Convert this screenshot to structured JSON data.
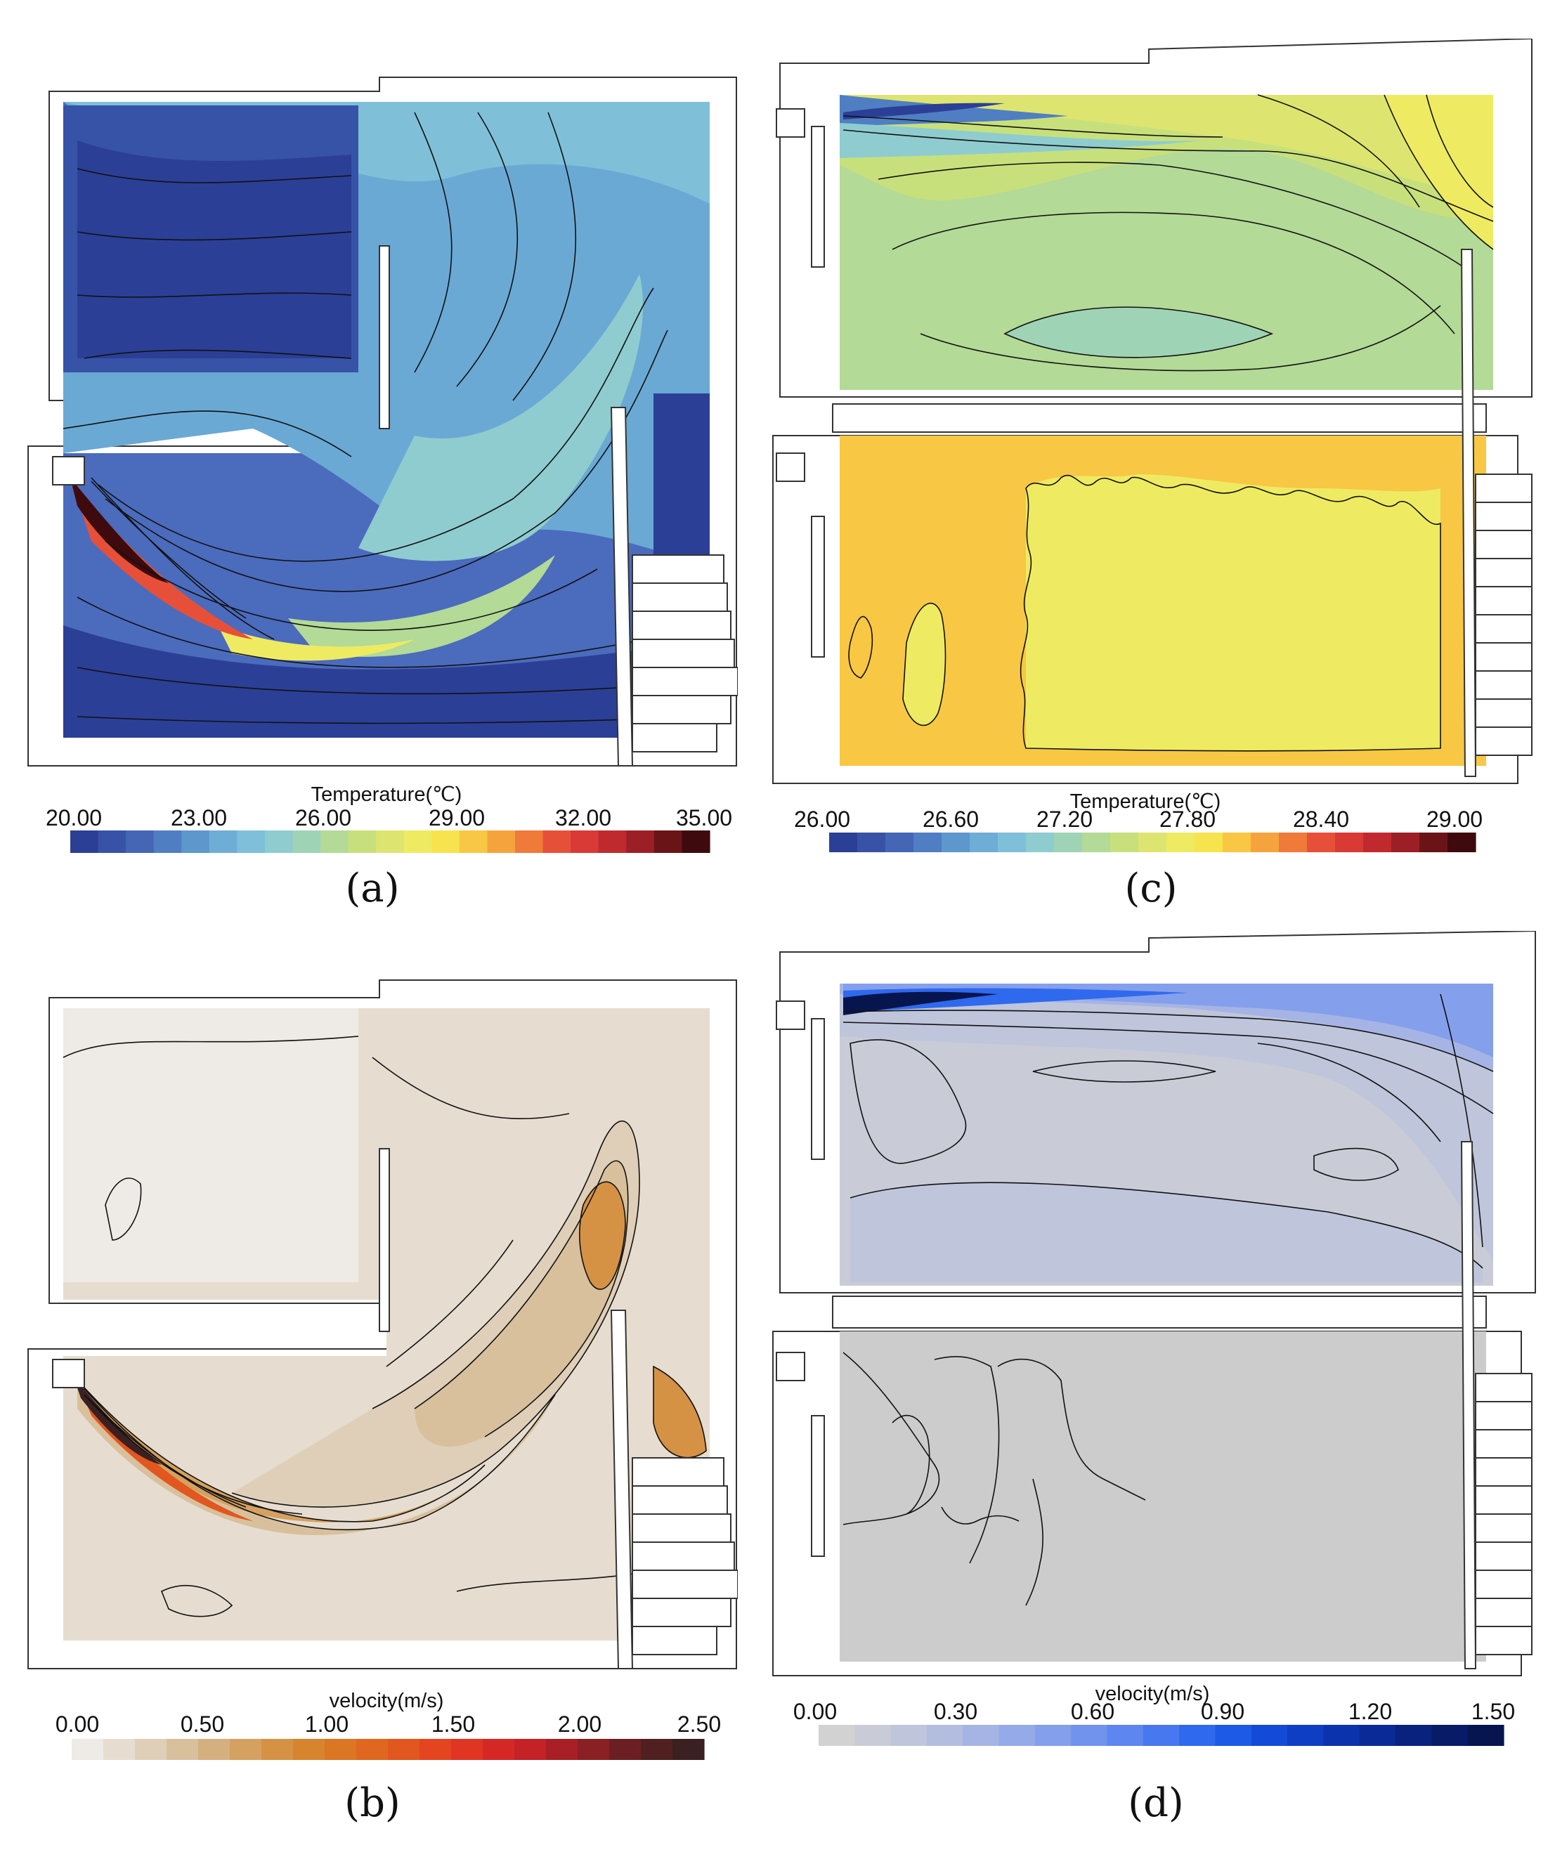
{
  "panels": [
    {
      "id": "a",
      "caption": "(a)",
      "colorbar": {
        "title": "Temperature(℃)",
        "ticks": [
          "20.00",
          "23.00",
          "26.00",
          "29.00",
          "32.00",
          "35.00"
        ],
        "colors": [
          "#2c3f96",
          "#3752a6",
          "#4466b4",
          "#4f7fc2",
          "#5d97cc",
          "#6eadd6",
          "#7fbfd9",
          "#8fcccf",
          "#9fd3b6",
          "#b3da96",
          "#c8e07c",
          "#dde570",
          "#eeeb62",
          "#f7e34e",
          "#f8c744",
          "#f5a43d",
          "#ef7a3a",
          "#e75038",
          "#d93a35",
          "#c02a2f",
          "#9c1f27",
          "#6b1418",
          "#3f0a0d"
        ]
      }
    },
    {
      "id": "b",
      "caption": "(b)",
      "colorbar": {
        "title": "velocity(m/s)",
        "ticks": [
          "0.00",
          "0.50",
          "1.00",
          "1.50",
          "2.00",
          "2.50"
        ],
        "colors": [
          "#eeeae5",
          "#e6ddd0",
          "#dfcfb8",
          "#d8c09d",
          "#d5b07f",
          "#d5a160",
          "#d59245",
          "#d7842f",
          "#db7624",
          "#df6720",
          "#e2561f",
          "#e44520",
          "#e03522",
          "#d52825",
          "#c42227",
          "#a91f26",
          "#8a1f24",
          "#6c1f22",
          "#502020",
          "#3a2020"
        ]
      }
    },
    {
      "id": "c",
      "caption": "(c)",
      "colorbar": {
        "title": "Temperature(℃)",
        "ticks": [
          "26.00",
          "26.60",
          "27.20",
          "27.80",
          "28.40",
          "29.00"
        ],
        "colors": [
          "#2c3f96",
          "#3752a6",
          "#4466b4",
          "#4f7fc2",
          "#5d97cc",
          "#6eadd6",
          "#7fbfd9",
          "#8fcccf",
          "#9fd3b6",
          "#b3da96",
          "#c8e07c",
          "#dde570",
          "#eeeb62",
          "#f7e34e",
          "#f8c744",
          "#f5a43d",
          "#ef7a3a",
          "#e75038",
          "#d93a35",
          "#c02a2f",
          "#9c1f27",
          "#6b1418",
          "#3f0a0d"
        ]
      }
    },
    {
      "id": "d",
      "caption": "(d)",
      "colorbar": {
        "title": "velocity(m/s)",
        "ticks": [
          "0.00",
          "0.30",
          "0.60",
          "0.90",
          "1.20",
          "1.50"
        ],
        "colors": [
          "#d2d2d2",
          "#c9ccd6",
          "#bfc5db",
          "#b3bde0",
          "#a5b4e4",
          "#95aae8",
          "#849feb",
          "#7193ee",
          "#5d86f0",
          "#4778f0",
          "#2f69ee",
          "#1d5ae6",
          "#134bd8",
          "#0e3ec4",
          "#0b33ae",
          "#0a2a96",
          "#09227e",
          "#081b66",
          "#07154e"
        ]
      }
    }
  ]
}
